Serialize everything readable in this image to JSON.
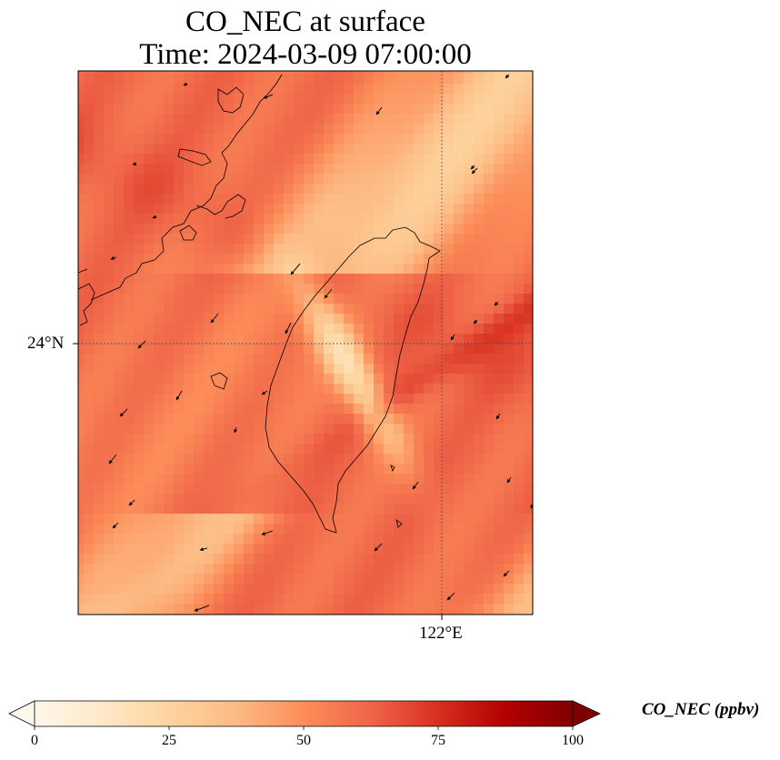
{
  "title_line1": "CO_NEC at surface",
  "title_line2": "Time: 2024-03-09 07:00:00",
  "map": {
    "lat_label": "24°N",
    "lon_label": "122°E",
    "gridline_style": "dotted"
  },
  "colorbar": {
    "label": "CO_NEC (ppbv)",
    "ticks": [
      "0",
      "25",
      "50",
      "75",
      "100"
    ],
    "range": [
      0,
      100
    ],
    "colormap": "OrRd",
    "extend": "both",
    "colors": [
      "#fff7ec",
      "#fee8c8",
      "#fdd49e",
      "#fdbb84",
      "#fc8d59",
      "#ef6548",
      "#d7301f",
      "#b30000",
      "#7f0000"
    ]
  }
}
